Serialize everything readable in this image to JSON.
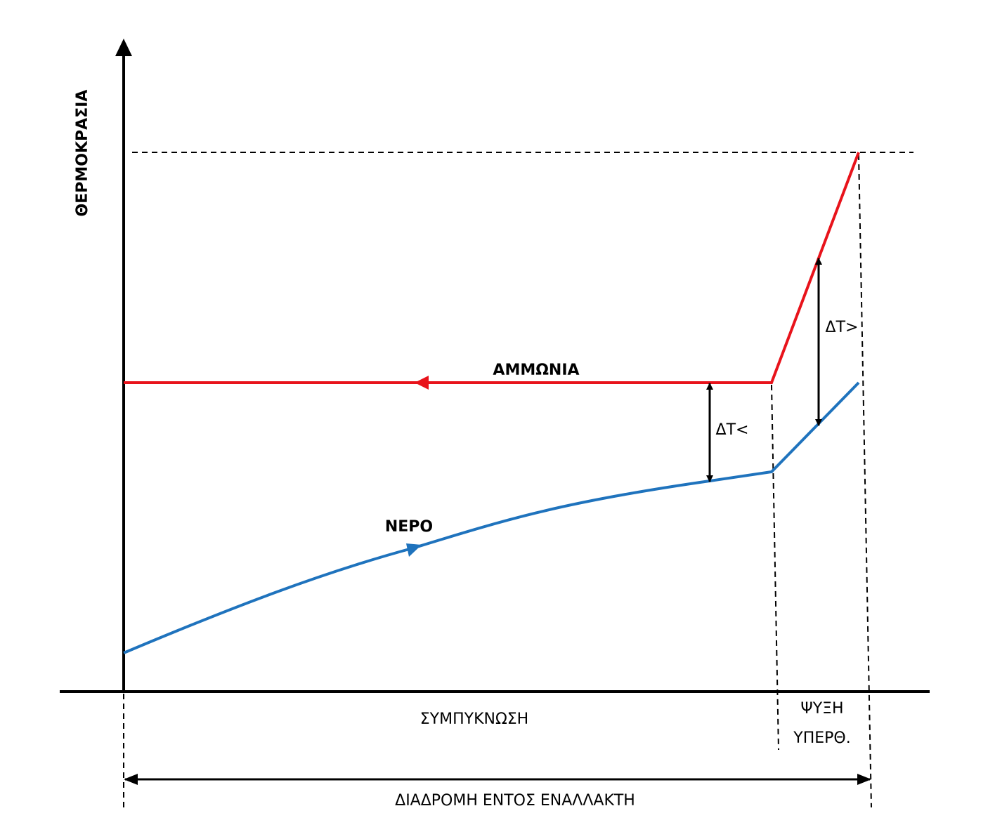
{
  "y_axis_label": "ΘΕΡΜΟΚΡΑΣΙΑ",
  "curves": [
    {
      "label": "ΑΜΜΩΝΙΑ"
    },
    {
      "label": "ΝΕΡΟ"
    }
  ],
  "delta_labels": [
    "ΔΤ<",
    "ΔΤ>"
  ],
  "zones": [
    {
      "lines": [
        "ΣΥΜΠΥΚΝΩΣΗ"
      ]
    },
    {
      "lines": [
        "ΨΥΞΗ",
        "ΥΠΕΡΘ."
      ]
    }
  ],
  "path_label": "ΔΙΑΔΡΟΜΗ ΕΝΤΟΣ ΕΝΑΛΛΑΚΤΗ"
}
